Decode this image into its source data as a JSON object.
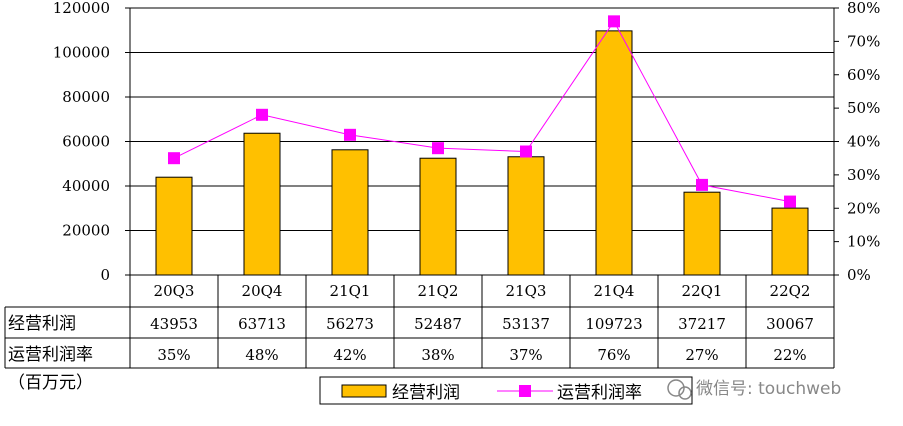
{
  "chart_data": {
    "type": "bar",
    "categories": [
      "20Q3",
      "20Q4",
      "21Q1",
      "21Q2",
      "21Q3",
      "21Q4",
      "22Q1",
      "22Q2"
    ],
    "series": [
      {
        "name": "经营利润",
        "kind": "bar",
        "axis": "left",
        "color": "#FFC000",
        "values": [
          43953,
          63713,
          56273,
          52487,
          53137,
          109723,
          37217,
          30067
        ]
      },
      {
        "name": "运营利润率",
        "kind": "line",
        "axis": "right",
        "color": "#FF00FF",
        "values": [
          35,
          48,
          42,
          38,
          37,
          76,
          27,
          22
        ]
      }
    ],
    "y_left": {
      "min": 0,
      "max": 120000,
      "ticks": [
        "0",
        "20000",
        "40000",
        "60000",
        "80000",
        "100000",
        "120000"
      ]
    },
    "y_right": {
      "min": 0,
      "max": 80,
      "ticks": [
        "0%",
        "10%",
        "20%",
        "30%",
        "40%",
        "50%",
        "60%",
        "70%",
        "80%"
      ]
    },
    "table": {
      "rows": [
        {
          "label": "经营利润",
          "cells": [
            "43953",
            "63713",
            "56273",
            "52487",
            "53137",
            "109723",
            "37217",
            "30067"
          ]
        },
        {
          "label": "运营利润率",
          "cells": [
            "35%",
            "48%",
            "42%",
            "38%",
            "37%",
            "76%",
            "27%",
            "22%"
          ]
        }
      ]
    },
    "unit_note": "（百万元）",
    "legend": {
      "placement": "bottom",
      "items": [
        "经营利润",
        "运营利润率"
      ]
    },
    "grid": true
  },
  "watermark": "微信号: touchweb"
}
